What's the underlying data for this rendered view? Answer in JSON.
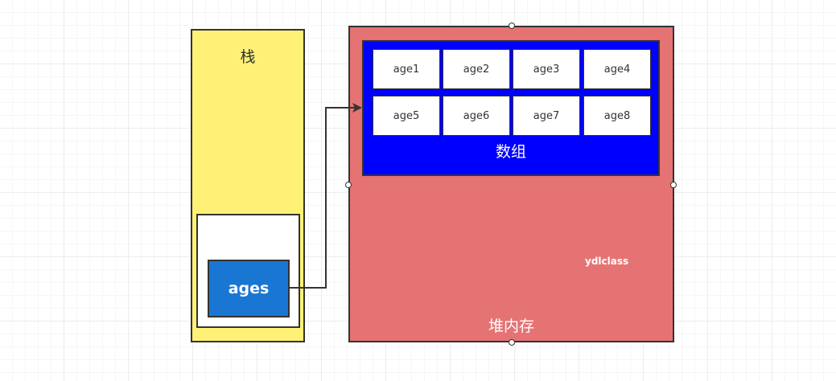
{
  "stack": {
    "title": "栈",
    "variable": "ages"
  },
  "heap": {
    "title": "堆内存",
    "watermark": "ydlclass"
  },
  "array": {
    "title": "数组",
    "cells": [
      "age1",
      "age2",
      "age3",
      "age4",
      "age5",
      "age6",
      "age7",
      "age8"
    ]
  },
  "colors": {
    "stack_fill": "#fff176",
    "heap_fill": "#e57373",
    "array_fill": "#0000ff",
    "reference_fill": "#1976d2",
    "stroke": "#333333"
  }
}
